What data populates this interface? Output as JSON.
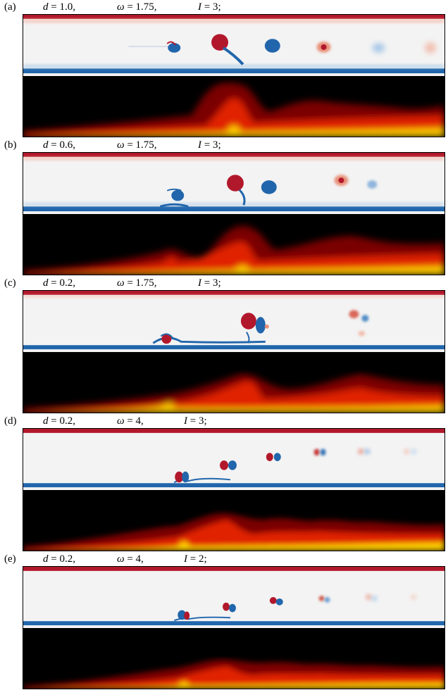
{
  "colors": {
    "vorticity_background": "#f2f2f2",
    "positive_vortex": "#b2182b",
    "negative_vortex": "#2166ac",
    "scalar_low": "#000000",
    "scalar_mid": "#d62000",
    "scalar_high": "#ffff66"
  },
  "panels": [
    {
      "label": "(a)",
      "d_sym": "d",
      "d_val": " = 1.0,",
      "w_sym": "ω",
      "w_val": " = 1.75,",
      "i_sym": "I",
      "i_val": " = 3;"
    },
    {
      "label": "(b)",
      "d_sym": "d",
      "d_val": " = 0.6,",
      "w_sym": "ω",
      "w_val": " = 1.75,",
      "i_sym": "I",
      "i_val": " = 3;"
    },
    {
      "label": "(c)",
      "d_sym": "d",
      "d_val": " = 0.2,",
      "w_sym": "ω",
      "w_val": " = 1.75,",
      "i_sym": "I",
      "i_val": " = 3;"
    },
    {
      "label": "(d)",
      "d_sym": "d",
      "d_val": " = 0.2,",
      "w_sym": "ω",
      "w_val": " = 4,",
      "i_sym": "I",
      "i_val": " = 3;"
    },
    {
      "label": "(e)",
      "d_sym": "d",
      "d_val": " = 0.2,",
      "w_sym": "ω",
      "w_val": " = 4,",
      "i_sym": "I",
      "i_val": " = 2;"
    }
  ]
}
